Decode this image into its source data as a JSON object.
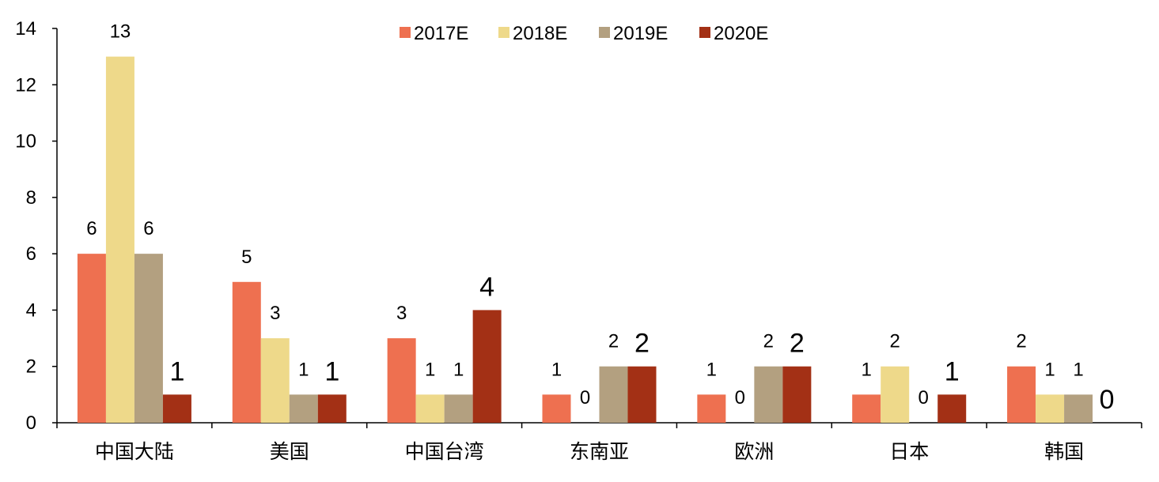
{
  "chart_data": {
    "type": "bar",
    "categories": [
      "中国大陆",
      "美国",
      "中国台湾",
      "东南亚",
      "欧洲",
      "日本",
      "韩国"
    ],
    "series": [
      {
        "name": "2017E",
        "color": "#EE7050",
        "values": [
          6,
          5,
          3,
          1,
          1,
          1,
          2
        ]
      },
      {
        "name": "2018E",
        "color": "#EED98A",
        "values": [
          13,
          3,
          1,
          0,
          0,
          2,
          1
        ]
      },
      {
        "name": "2019E",
        "color": "#B3A080",
        "values": [
          6,
          1,
          1,
          2,
          2,
          0,
          1
        ]
      },
      {
        "name": "2020E",
        "color": "#A33015",
        "values": [
          1,
          1,
          4,
          2,
          2,
          1,
          0
        ]
      }
    ],
    "y_ticks": [
      "0",
      "2",
      "4",
      "6",
      "8",
      "10",
      "12",
      "14"
    ],
    "ylim": [
      0,
      14
    ],
    "title": "",
    "xlabel": "",
    "ylabel": "",
    "legend_position": "top-center",
    "grid": false
  }
}
